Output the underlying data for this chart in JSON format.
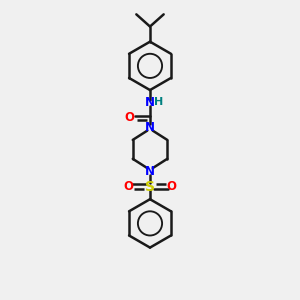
{
  "background_color": "#f0f0f0",
  "bond_color": "#1a1a1a",
  "n_color": "#0000ff",
  "o_color": "#ff0000",
  "s_color": "#cccc00",
  "h_color": "#008080",
  "figsize": [
    3.0,
    3.0
  ],
  "dpi": 100,
  "xlim": [
    0,
    10
  ],
  "ylim": [
    0,
    14
  ]
}
